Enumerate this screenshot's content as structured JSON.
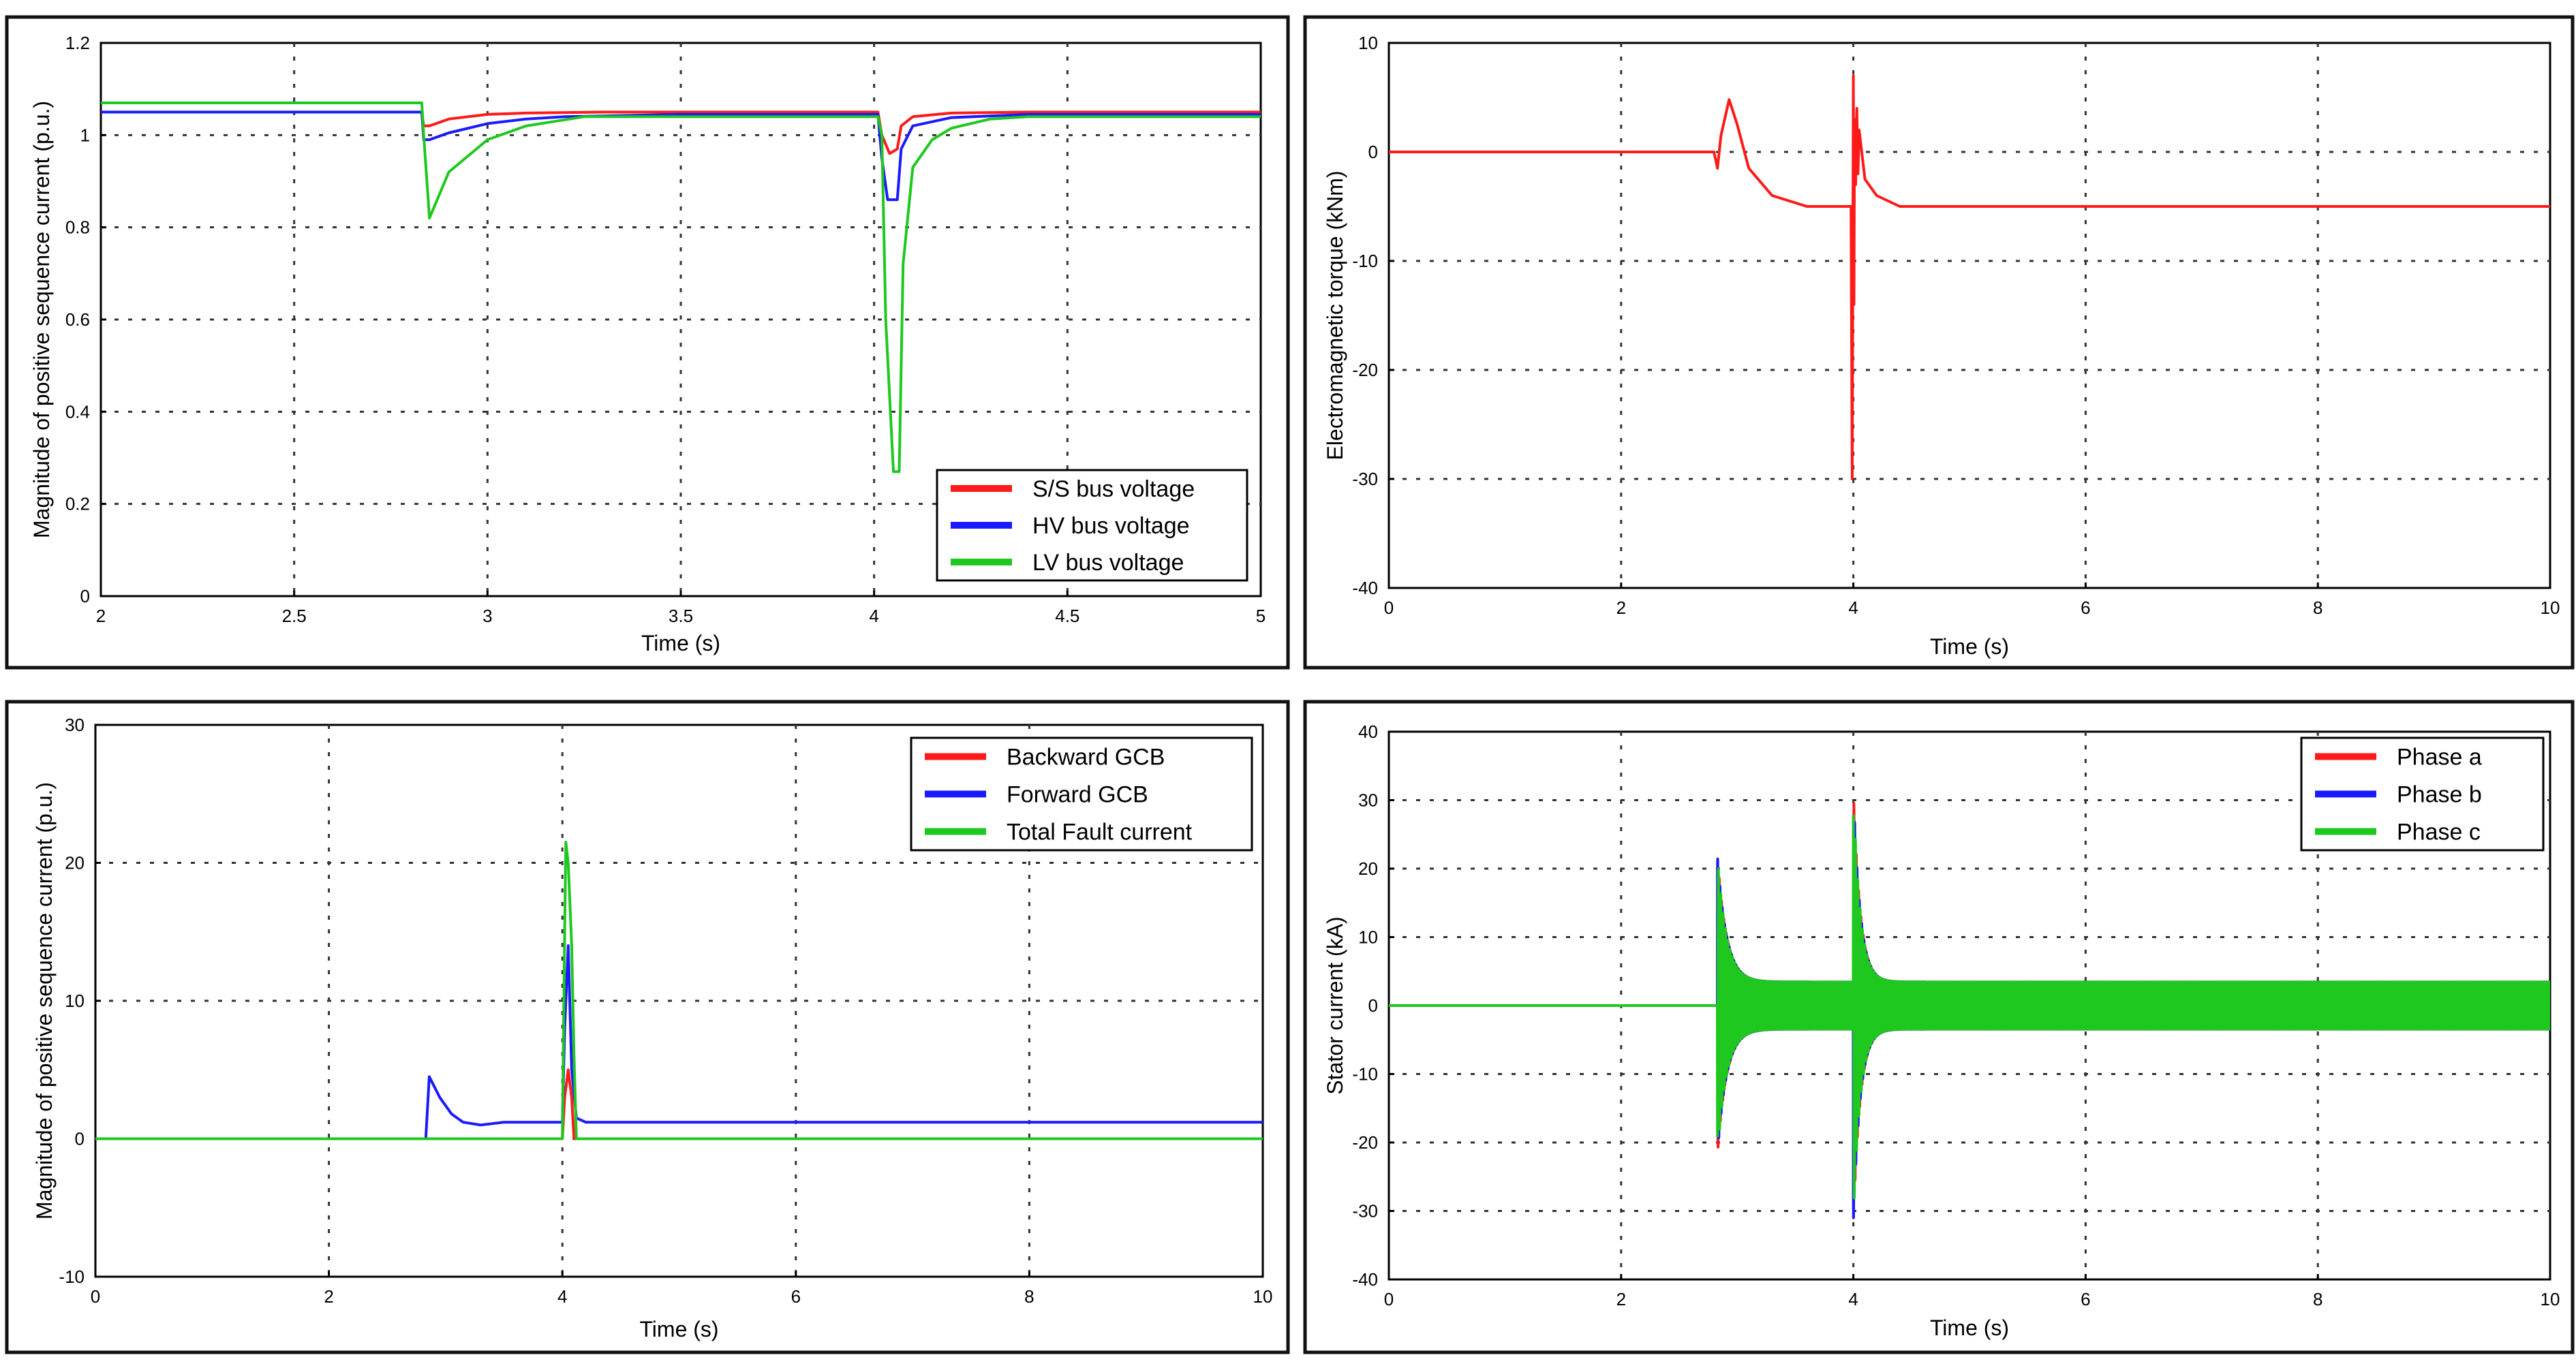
{
  "colors": {
    "red": "#ff1a1a",
    "blue": "#1a1aff",
    "green": "#1ec81e"
  },
  "chart_data": [
    {
      "type": "line",
      "xlabel": "Time (s)",
      "ylabel": "Magnitude of positive sequence current (p.u.)",
      "xlim": [
        2,
        5
      ],
      "ylim": [
        0,
        1.2
      ],
      "xticks": [
        2,
        2.5,
        3,
        3.5,
        4,
        4.5,
        5
      ],
      "yticks": [
        0,
        0.2,
        0.4,
        0.6,
        0.8,
        1,
        1.2
      ],
      "grid": true,
      "legend_position": "bottom-right",
      "series": [
        {
          "name": "S/S bus voltage",
          "color": "red",
          "x": [
            2,
            2.83,
            2.835,
            2.85,
            2.9,
            3.0,
            3.1,
            3.3,
            4.01,
            4.02,
            4.04,
            4.06,
            4.07,
            4.1,
            4.2,
            4.4,
            5
          ],
          "y": [
            1.05,
            1.05,
            1.02,
            1.02,
            1.035,
            1.045,
            1.048,
            1.05,
            1.05,
            1.0,
            0.96,
            0.97,
            1.02,
            1.04,
            1.048,
            1.05,
            1.05
          ]
        },
        {
          "name": "HV bus voltage",
          "color": "blue",
          "x": [
            2,
            2.83,
            2.835,
            2.85,
            2.9,
            3.0,
            3.1,
            3.2,
            3.5,
            4.01,
            4.02,
            4.035,
            4.06,
            4.07,
            4.1,
            4.2,
            4.4,
            5
          ],
          "y": [
            1.05,
            1.05,
            0.99,
            0.99,
            1.005,
            1.025,
            1.035,
            1.04,
            1.045,
            1.045,
            0.95,
            0.86,
            0.86,
            0.97,
            1.02,
            1.038,
            1.045,
            1.045
          ]
        },
        {
          "name": "LV bus voltage",
          "color": "green",
          "x": [
            2,
            2.83,
            2.835,
            2.85,
            2.9,
            3.0,
            3.1,
            3.25,
            4.01,
            4.02,
            4.03,
            4.05,
            4.065,
            4.075,
            4.1,
            4.15,
            4.2,
            4.3,
            4.4,
            5
          ],
          "y": [
            1.07,
            1.07,
            1.0,
            0.82,
            0.92,
            0.99,
            1.02,
            1.04,
            1.04,
            1.0,
            0.6,
            0.27,
            0.27,
            0.72,
            0.93,
            0.99,
            1.015,
            1.035,
            1.04,
            1.04
          ]
        }
      ]
    },
    {
      "type": "line",
      "xlabel": "Time (s)",
      "ylabel": "Electromagnetic torque (kNm)",
      "xlim": [
        0,
        10
      ],
      "ylim": [
        -40,
        10
      ],
      "xticks": [
        0,
        2,
        4,
        6,
        8,
        10
      ],
      "yticks": [
        -40,
        -30,
        -20,
        -10,
        0,
        10
      ],
      "grid": true,
      "legend_position": "none",
      "series": [
        {
          "color": "red",
          "x": [
            0,
            2.8,
            2.83,
            2.86,
            2.93,
            3.0,
            3.1,
            3.3,
            3.6,
            3.98,
            3.99,
            4.0,
            4.005,
            4.01,
            4.02,
            4.03,
            4.04,
            4.05,
            4.1,
            4.2,
            4.4,
            10
          ],
          "y": [
            0,
            0,
            -1.5,
            1.5,
            4.8,
            2.5,
            -1.5,
            -4,
            -5,
            -5,
            -30,
            7,
            -14,
            3,
            -3,
            4,
            -2,
            2,
            -2.5,
            -4,
            -5,
            -5
          ]
        }
      ]
    },
    {
      "type": "line",
      "xlabel": "Time (s)",
      "ylabel": "Magnitude of positive sequence current (p.u.)",
      "xlim": [
        0,
        10
      ],
      "ylim": [
        -10,
        30
      ],
      "xticks": [
        0,
        2,
        4,
        6,
        8,
        10
      ],
      "yticks": [
        -10,
        0,
        10,
        20,
        30
      ],
      "grid": true,
      "legend_position": "top-right",
      "series": [
        {
          "name": "Backward GCB",
          "color": "red",
          "x": [
            0,
            4.0,
            4.02,
            4.05,
            4.08,
            4.1,
            10
          ],
          "y": [
            0,
            0,
            3,
            5,
            3,
            0,
            0
          ]
        },
        {
          "name": "Forward GCB",
          "color": "blue",
          "x": [
            0,
            2.83,
            2.86,
            2.95,
            3.05,
            3.15,
            3.3,
            3.5,
            4.0,
            4.02,
            4.05,
            4.08,
            4.12,
            4.2,
            10
          ],
          "y": [
            0,
            0,
            4.5,
            3,
            1.8,
            1.2,
            1.0,
            1.2,
            1.2,
            8,
            14,
            5,
            1.5,
            1.2,
            1.2
          ]
        },
        {
          "name": "Total Fault current",
          "color": "green",
          "x": [
            0,
            4.0,
            4.02,
            4.03,
            4.05,
            4.08,
            4.1,
            4.12,
            10
          ],
          "y": [
            0,
            0,
            15,
            21.5,
            20,
            14,
            6,
            0,
            0
          ]
        }
      ]
    },
    {
      "type": "line",
      "xlabel": "Time (s)",
      "ylabel": "Stator current (kA)",
      "xlim": [
        0,
        10
      ],
      "ylim": [
        -40,
        40
      ],
      "xticks": [
        0,
        2,
        4,
        6,
        8,
        10
      ],
      "yticks": [
        -40,
        -30,
        -20,
        -10,
        0,
        10,
        20,
        30,
        40
      ],
      "grid": true,
      "legend_position": "top-right",
      "oscillation": {
        "fault_start": 2.83,
        "fault_peak_low": -20,
        "fault_peak_high": 22,
        "second_event": 4.0,
        "second_peak_high": 30,
        "second_peak_low": -32,
        "steady_amplitude": 3.5
      },
      "series": [
        {
          "name": "Phase a",
          "color": "red"
        },
        {
          "name": "Phase b",
          "color": "blue"
        },
        {
          "name": "Phase c",
          "color": "green"
        }
      ]
    }
  ]
}
